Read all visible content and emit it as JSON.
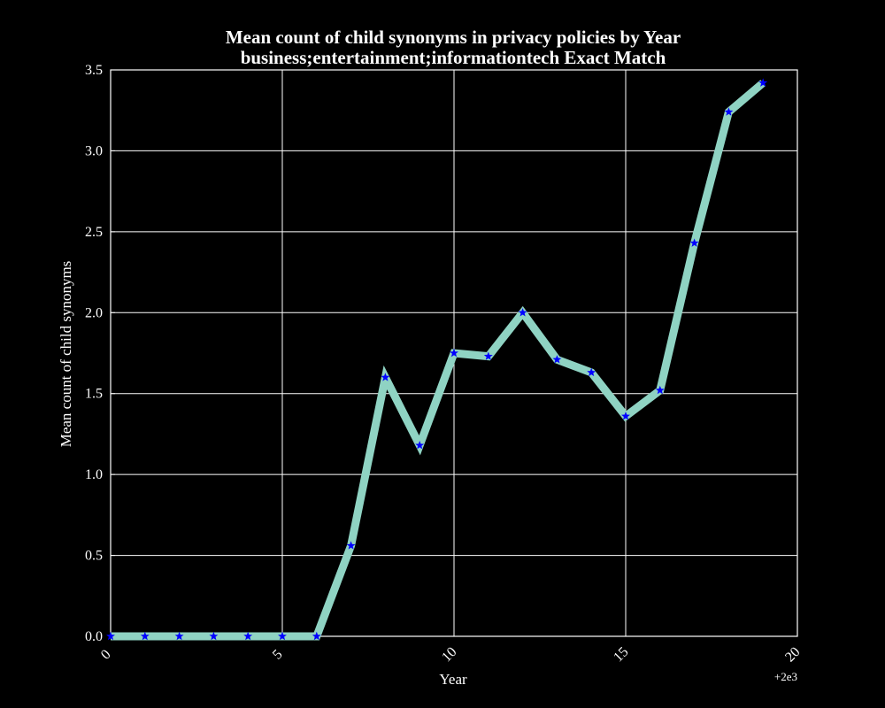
{
  "chart_data": {
    "type": "line",
    "title": "Mean count of child synonyms in privacy policies by Year",
    "subtitle": "business;entertainment;informationtech Exact Match",
    "xlabel": "Year",
    "ylabel": "Mean count of child synonyms",
    "x_offset_label": "+2e3",
    "xlim": [
      0,
      20
    ],
    "ylim": [
      0.0,
      3.5
    ],
    "x_ticks": [
      0,
      5,
      10,
      15,
      20
    ],
    "x_tick_labels": [
      "0",
      "5",
      "10",
      "15",
      "20"
    ],
    "y_ticks": [
      0.0,
      0.5,
      1.0,
      1.5,
      2.0,
      2.5,
      3.0,
      3.5
    ],
    "y_tick_labels": [
      "0.0",
      "0.5",
      "1.0",
      "1.5",
      "2.0",
      "2.5",
      "3.0",
      "3.5"
    ],
    "grid": true,
    "series": [
      {
        "line_color": "#8fd3c3",
        "marker_color": "#0000ff",
        "marker": "star",
        "x": [
          0,
          1,
          2,
          3,
          4,
          5,
          6,
          7,
          8,
          9,
          10,
          11,
          12,
          13,
          14,
          15,
          16,
          17,
          18,
          19
        ],
        "y": [
          0.0,
          0.0,
          0.0,
          0.0,
          0.0,
          0.0,
          0.0,
          0.56,
          1.6,
          1.18,
          1.75,
          1.73,
          2.0,
          1.71,
          1.63,
          1.36,
          1.52,
          2.43,
          3.24,
          3.42
        ]
      }
    ]
  }
}
